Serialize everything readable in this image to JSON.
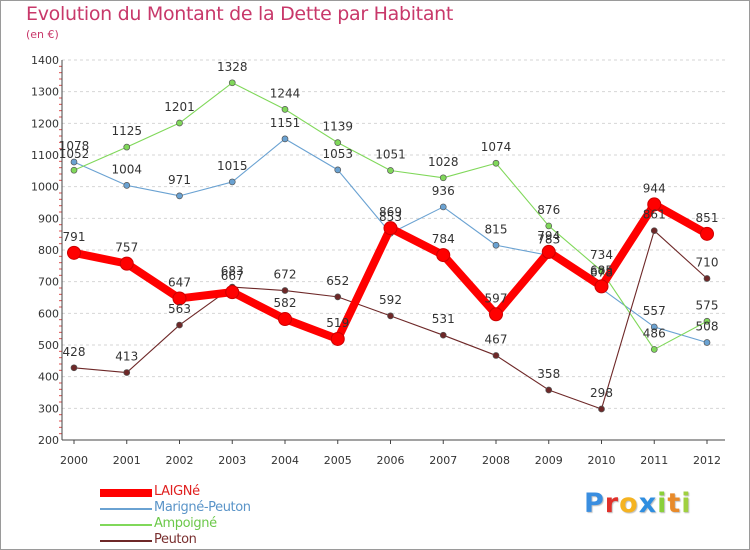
{
  "chart_data": {
    "type": "line",
    "title": "Evolution du Montant de la Dette par Habitant",
    "subtitle": "(en €)",
    "x": [
      "2000",
      "2001",
      "2002",
      "2003",
      "2004",
      "2005",
      "2006",
      "2007",
      "2008",
      "2009",
      "2010",
      "2011",
      "2012"
    ],
    "ylim": [
      200,
      1400
    ],
    "yticks": [
      200,
      300,
      400,
      500,
      600,
      700,
      800,
      900,
      1000,
      1100,
      1200,
      1300,
      1400
    ],
    "grid": "horizontal dashed",
    "legend_placement": "bottom-left",
    "series": [
      {
        "name": "LAIGNé",
        "color": "#ff0000",
        "values": [
          791,
          757,
          647,
          667,
          582,
          519,
          869,
          784,
          597,
          794,
          685,
          944,
          851
        ]
      },
      {
        "name": "Marigné-Peuton",
        "color": "#6aa2d2",
        "values": [
          1078,
          1004,
          971,
          1015,
          1151,
          1053,
          853,
          936,
          815,
          783,
          678,
          557,
          508
        ]
      },
      {
        "name": "Ampoigné",
        "color": "#80d85a",
        "values": [
          1052,
          1125,
          1201,
          1328,
          1244,
          1139,
          1051,
          1028,
          1074,
          876,
          734,
          486,
          575
        ]
      },
      {
        "name": "Peuton",
        "color": "#6e2828",
        "values": [
          428,
          413,
          563,
          683,
          672,
          652,
          592,
          531,
          467,
          358,
          298,
          861,
          710
        ]
      }
    ]
  },
  "brand": {
    "letters": [
      "P",
      "r",
      "o",
      "x",
      "i",
      "t",
      "i"
    ],
    "colors": [
      "#3a8ee0",
      "#e0302a",
      "#f5b321",
      "#2f8ee0",
      "#8ad03a",
      "#e88a2a",
      "#a0d040"
    ]
  }
}
